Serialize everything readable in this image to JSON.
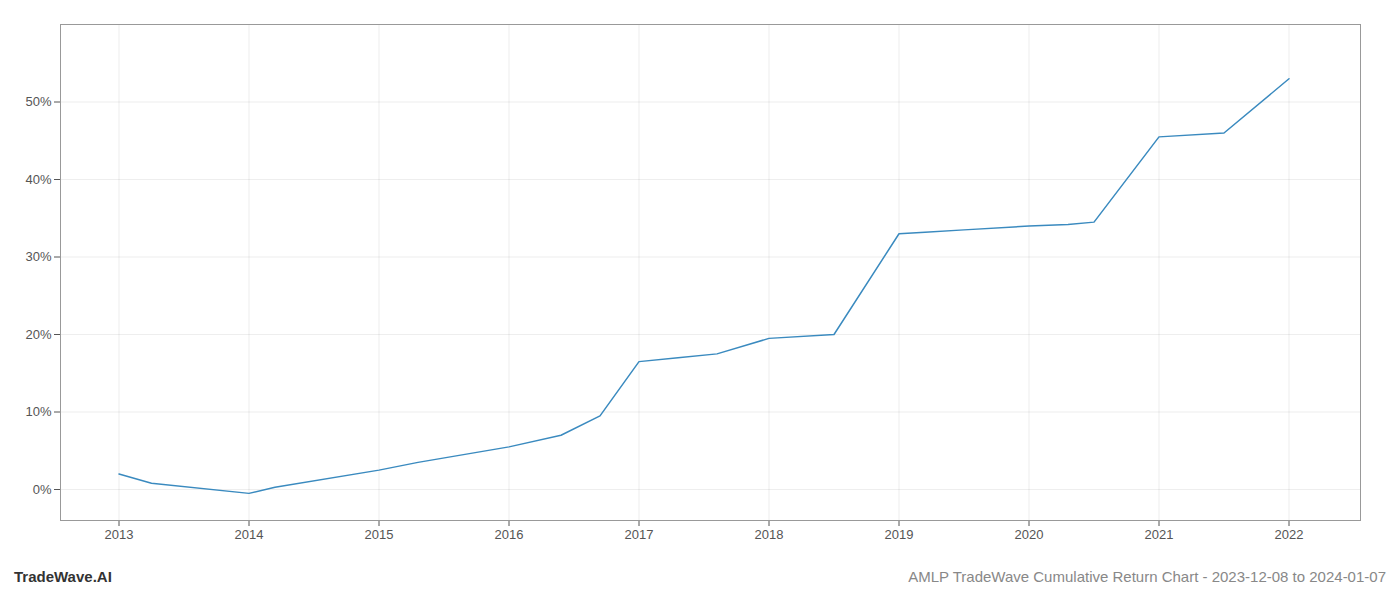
{
  "chart_data": {
    "type": "line",
    "title": "AMLP TradeWave Cumulative Return Chart - 2023-12-08 to 2024-01-07",
    "annotations": [
      "TradeWave.AI"
    ],
    "x": [
      2013.0,
      2013.25,
      2014.0,
      2014.2,
      2015.0,
      2015.3,
      2016.0,
      2016.4,
      2016.7,
      2017.0,
      2017.3,
      2017.6,
      2018.0,
      2018.5,
      2019.0,
      2019.2,
      2019.5,
      2020.0,
      2020.3,
      2020.5,
      2021.0,
      2021.5,
      2022.0
    ],
    "values": [
      2.0,
      0.8,
      -0.5,
      0.3,
      2.5,
      3.5,
      5.5,
      7.0,
      9.5,
      16.5,
      17.0,
      17.5,
      19.5,
      20.0,
      33.0,
      33.2,
      33.5,
      34.0,
      34.2,
      34.5,
      45.5,
      46.0,
      53.0
    ],
    "color": "#3a8abf",
    "xlim": [
      2012.55,
      2022.55
    ],
    "xticks": [
      2013,
      2014,
      2015,
      2016,
      2017,
      2018,
      2019,
      2020,
      2021,
      2022
    ],
    "ylim": [
      -4,
      60
    ],
    "yticks": [
      {
        "value": 0,
        "label": "0%"
      },
      {
        "value": 10,
        "label": "10%"
      },
      {
        "value": 20,
        "label": "20%"
      },
      {
        "value": 30,
        "label": "30%"
      },
      {
        "value": 40,
        "label": "40%"
      },
      {
        "value": 50,
        "label": "50%"
      }
    ],
    "grid": true
  }
}
